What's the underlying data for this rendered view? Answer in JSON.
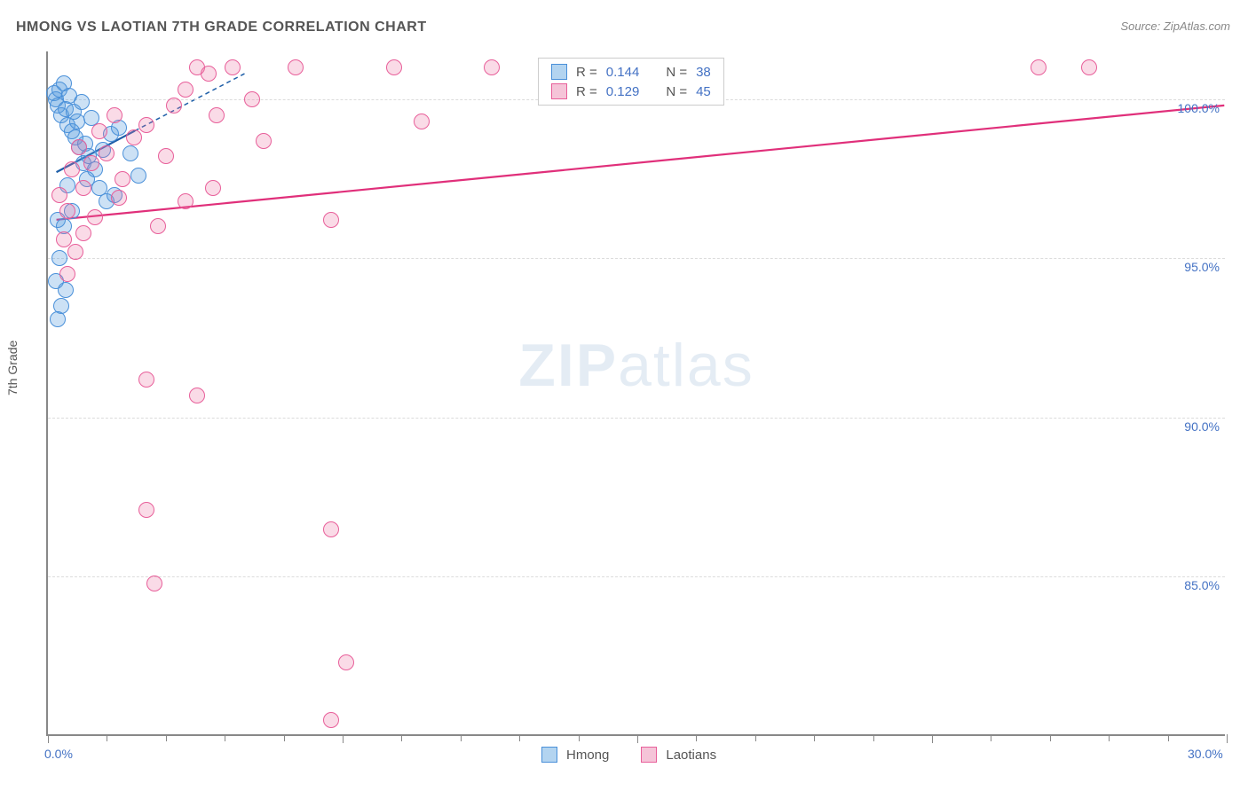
{
  "title": "HMONG VS LAOTIAN 7TH GRADE CORRELATION CHART",
  "source_label": "Source: ZipAtlas.com",
  "ylabel": "7th Grade",
  "watermark": {
    "bold_part": "ZIP",
    "light_part": "atlas"
  },
  "chart": {
    "type": "scatter",
    "background_color": "#ffffff",
    "grid_color": "#dcdcdc",
    "axis_color": "#888888",
    "label_color": "#4472c4",
    "label_fontsize": 14,
    "title_fontsize": 16,
    "title_color": "#555555",
    "xlim": [
      0,
      30
    ],
    "ylim": [
      80,
      101.5
    ],
    "xticks_major": [
      0,
      7.5,
      15,
      22.5,
      30
    ],
    "xticks_minor": [
      1.5,
      3,
      4.5,
      6,
      9,
      10.5,
      12,
      13.5,
      16.5,
      18,
      19.5,
      21,
      24,
      25.5,
      27,
      28.5
    ],
    "xtick_labels": {
      "0": "0.0%",
      "30": "30.0%"
    },
    "yticks": [
      85,
      90,
      95,
      100
    ],
    "ytick_labels": {
      "85": "85.0%",
      "90": "90.0%",
      "95": "95.0%",
      "100": "100.0%"
    },
    "marker_radius": 9,
    "marker_border_width": 1.5,
    "series": [
      {
        "name": "Hmong",
        "fill_color": "rgba(86,155,222,0.30)",
        "border_color": "#4a90d9",
        "swatch_fill": "#b3d4f0",
        "swatch_border": "#4a90d9",
        "R": "0.144",
        "N": "38",
        "trend": {
          "x1": 0.2,
          "y1": 97.7,
          "x2": 2.2,
          "y2": 99.0,
          "color": "#1f5fa8",
          "width": 2.2,
          "dash": "none",
          "proj_x1": 2.2,
          "proj_y1": 99.0,
          "proj_x2": 5.0,
          "proj_y2": 100.8
        },
        "points": [
          [
            0.15,
            100.2
          ],
          [
            0.2,
            100.0
          ],
          [
            0.25,
            99.8
          ],
          [
            0.3,
            100.3
          ],
          [
            0.35,
            99.5
          ],
          [
            0.4,
            100.5
          ],
          [
            0.45,
            99.7
          ],
          [
            0.5,
            99.2
          ],
          [
            0.55,
            100.1
          ],
          [
            0.6,
            99.0
          ],
          [
            0.65,
            99.6
          ],
          [
            0.7,
            98.8
          ],
          [
            0.75,
            99.3
          ],
          [
            0.8,
            98.5
          ],
          [
            0.85,
            99.9
          ],
          [
            0.9,
            98.0
          ],
          [
            0.95,
            98.6
          ],
          [
            1.0,
            97.5
          ],
          [
            1.05,
            98.2
          ],
          [
            1.1,
            99.4
          ],
          [
            1.2,
            97.8
          ],
          [
            1.3,
            97.2
          ],
          [
            1.4,
            98.4
          ],
          [
            1.5,
            96.8
          ],
          [
            1.6,
            98.9
          ],
          [
            1.7,
            97.0
          ],
          [
            1.8,
            99.1
          ],
          [
            2.1,
            98.3
          ],
          [
            0.25,
            96.2
          ],
          [
            0.4,
            96.0
          ],
          [
            0.3,
            95.0
          ],
          [
            0.2,
            94.3
          ],
          [
            0.45,
            94.0
          ],
          [
            0.35,
            93.5
          ],
          [
            0.25,
            93.1
          ],
          [
            0.5,
            97.3
          ],
          [
            0.6,
            96.5
          ],
          [
            2.3,
            97.6
          ]
        ]
      },
      {
        "name": "Laotians",
        "fill_color": "rgba(236,110,160,0.25)",
        "border_color": "#e85f9a",
        "swatch_fill": "#f5c4d8",
        "swatch_border": "#e85f9a",
        "R": "0.129",
        "N": "45",
        "trend": {
          "x1": 0.2,
          "y1": 96.2,
          "x2": 30.0,
          "y2": 99.8,
          "color": "#e02f7a",
          "width": 2.2,
          "dash": "none",
          "proj_x1": 0,
          "proj_y1": 0,
          "proj_x2": 0,
          "proj_y2": 0
        },
        "points": [
          [
            0.3,
            97.0
          ],
          [
            0.5,
            96.5
          ],
          [
            0.6,
            97.8
          ],
          [
            0.8,
            98.5
          ],
          [
            0.9,
            97.2
          ],
          [
            1.1,
            98.0
          ],
          [
            1.3,
            99.0
          ],
          [
            1.5,
            98.3
          ],
          [
            1.7,
            99.5
          ],
          [
            1.9,
            97.5
          ],
          [
            2.2,
            98.8
          ],
          [
            2.5,
            99.2
          ],
          [
            2.8,
            96.0
          ],
          [
            3.0,
            98.2
          ],
          [
            3.2,
            99.8
          ],
          [
            3.5,
            100.3
          ],
          [
            3.8,
            101.0
          ],
          [
            4.1,
            100.8
          ],
          [
            4.3,
            99.5
          ],
          [
            4.7,
            101.0
          ],
          [
            5.2,
            100.0
          ],
          [
            5.5,
            98.7
          ],
          [
            6.3,
            101.0
          ],
          [
            7.2,
            96.2
          ],
          [
            8.8,
            101.0
          ],
          [
            9.5,
            99.3
          ],
          [
            11.3,
            101.0
          ],
          [
            13.5,
            100.5
          ],
          [
            25.2,
            101.0
          ],
          [
            26.5,
            101.0
          ],
          [
            0.4,
            95.6
          ],
          [
            0.7,
            95.2
          ],
          [
            1.2,
            96.3
          ],
          [
            0.5,
            94.5
          ],
          [
            2.5,
            91.2
          ],
          [
            3.8,
            90.7
          ],
          [
            2.5,
            87.1
          ],
          [
            7.2,
            86.5
          ],
          [
            2.7,
            84.8
          ],
          [
            7.6,
            82.3
          ],
          [
            7.2,
            80.5
          ],
          [
            3.5,
            96.8
          ],
          [
            4.2,
            97.2
          ],
          [
            0.9,
            95.8
          ],
          [
            1.8,
            96.9
          ]
        ]
      }
    ]
  },
  "legend_top": {
    "row1": {
      "r_label": "R =",
      "n_label": "N ="
    },
    "row2": {
      "r_label": "R =",
      "n_label": "N ="
    }
  },
  "legend_bottom": {
    "label1": "Hmong",
    "label2": "Laotians"
  }
}
